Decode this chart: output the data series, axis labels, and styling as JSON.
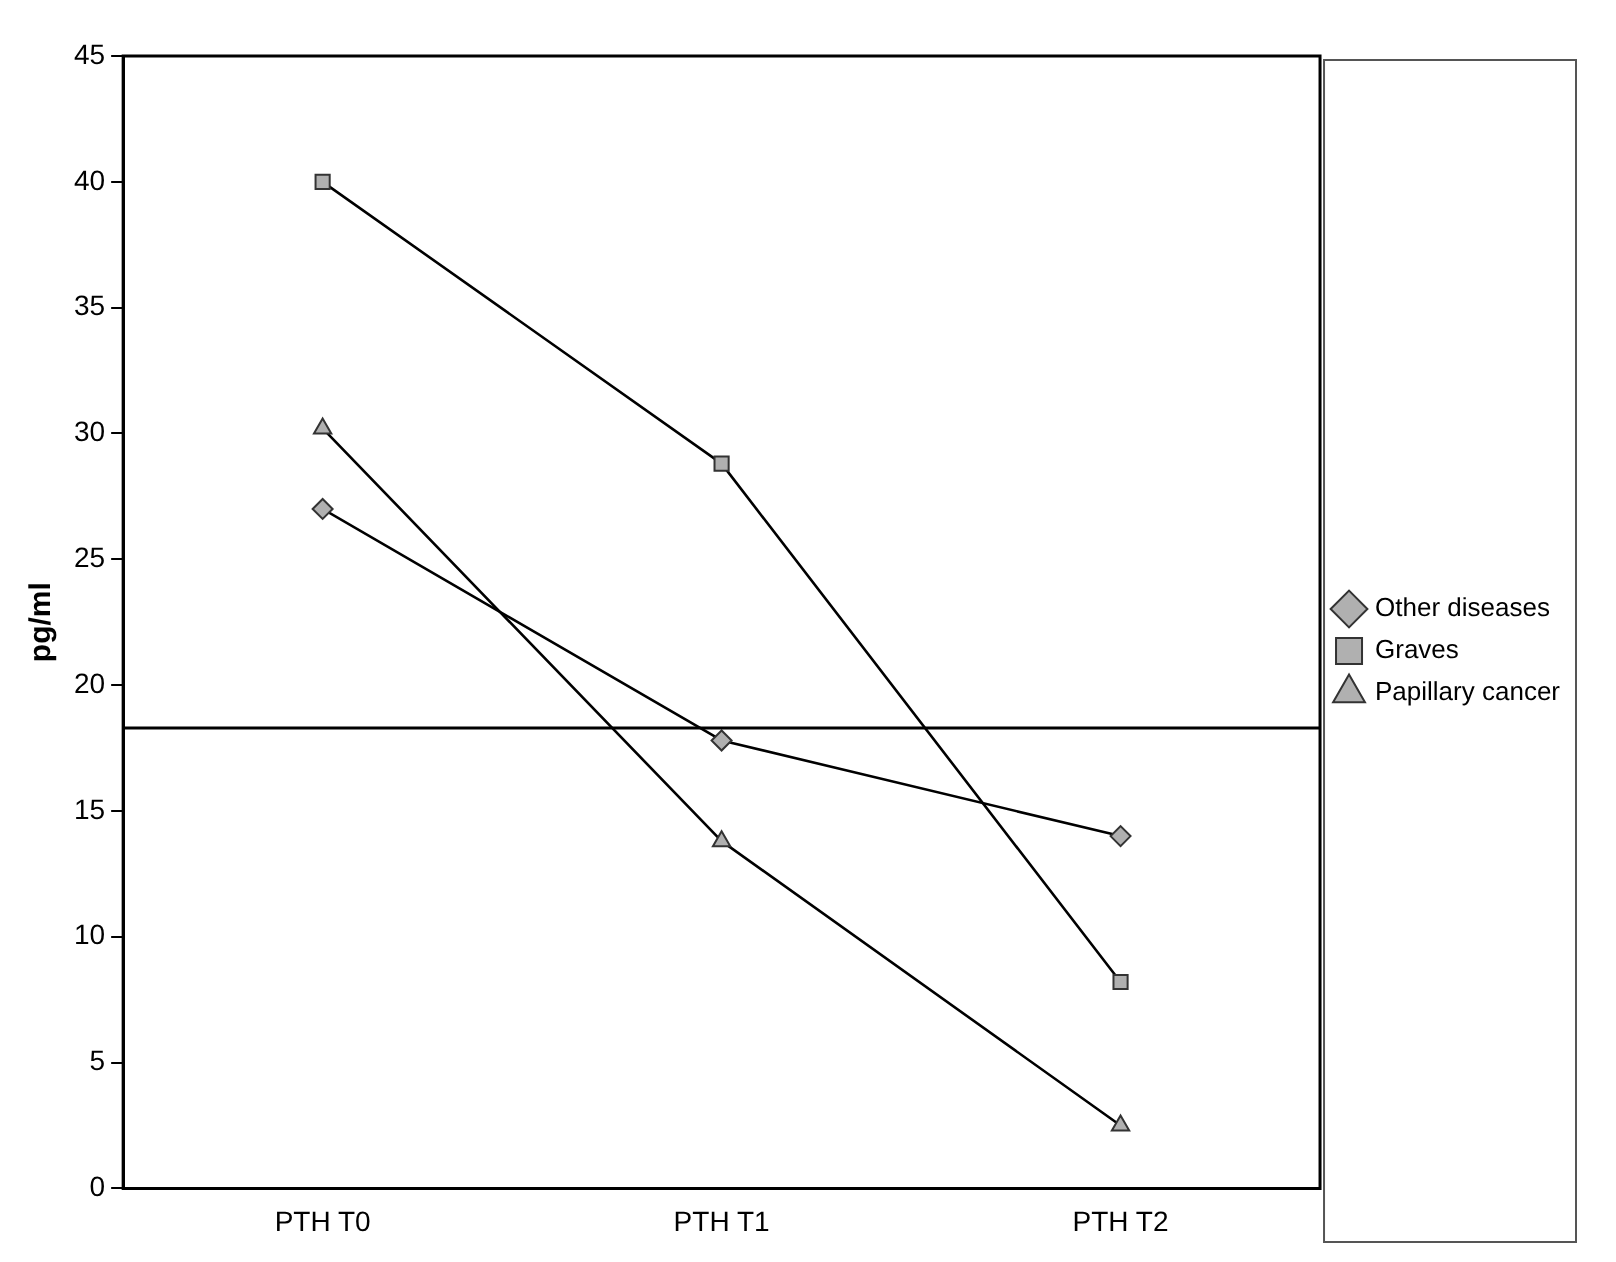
{
  "chart_data": {
    "type": "line",
    "ylabel": "pg/ml",
    "categories": [
      "PTH T0",
      "PTH T1",
      "PTH T2"
    ],
    "series": [
      {
        "name": "Other diseases",
        "color": "#000000",
        "marker": "diamond",
        "values": [
          27,
          17.8,
          14
        ]
      },
      {
        "name": "Graves",
        "color": "#000000",
        "marker": "square",
        "values": [
          40,
          28.8,
          8.2
        ]
      },
      {
        "name": "Papillary cancer",
        "color": "#000000",
        "marker": "triangle",
        "values": [
          30.2,
          13.8,
          2.5
        ]
      }
    ],
    "ylim": [
      0,
      45
    ],
    "yticks": [
      0,
      5,
      10,
      15,
      20,
      25,
      30,
      35,
      40,
      45
    ],
    "grid": false,
    "legend": "right",
    "line_style": "solid",
    "ref_lines": [
      {
        "axis": "y",
        "value": 18.3,
        "color": "#000000"
      }
    ]
  }
}
